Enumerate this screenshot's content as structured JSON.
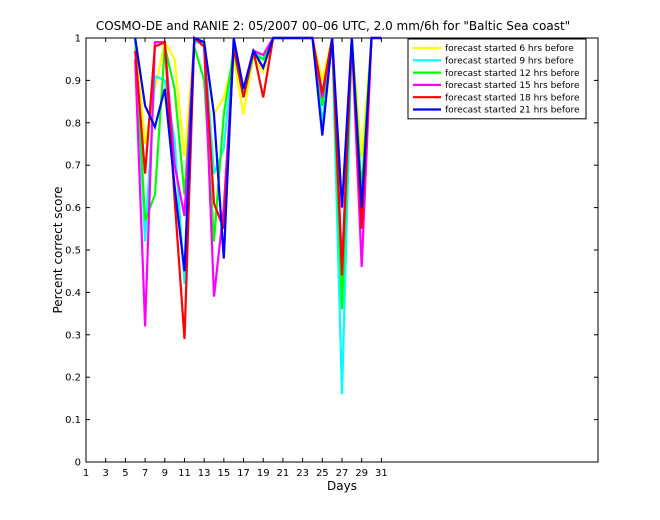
{
  "chart_data": {
    "type": "line",
    "title": "COSMO-DE and RANIE 2: 05/2007 00–06 UTC, 2.0 mm/6h for \"Baltic Sea coast\"",
    "xlabel": "Days",
    "ylabel": "Percent correct score",
    "xlim": [
      1,
      53
    ],
    "ylim": [
      0,
      1
    ],
    "x_ticks": [
      1,
      3,
      5,
      7,
      9,
      11,
      13,
      15,
      17,
      19,
      21,
      23,
      25,
      27,
      29,
      31
    ],
    "y_ticks": [
      0,
      0.1,
      0.2,
      0.3,
      0.4,
      0.5,
      0.6,
      0.7,
      0.8,
      0.9,
      1
    ],
    "grid": false,
    "legend_position": "top-right",
    "x": [
      6,
      7,
      8,
      9,
      10,
      11,
      12,
      13,
      14,
      15,
      16,
      17,
      18,
      19,
      20,
      21,
      22,
      23,
      24,
      25,
      26,
      27,
      28,
      29,
      30,
      31
    ],
    "series": [
      {
        "name": "forecast started 6 hrs before",
        "color": "#ffff00",
        "values": [
          1,
          0.75,
          0.88,
          0.99,
          0.95,
          0.72,
          0.99,
          0.99,
          0.82,
          0.86,
          0.95,
          0.82,
          0.96,
          0.92,
          1,
          1,
          1,
          1,
          1,
          0.9,
          1,
          0.42,
          1,
          0.72,
          1,
          1
        ]
      },
      {
        "name": "forecast started 9 hrs before",
        "color": "#00ffff",
        "values": [
          1,
          0.52,
          0.91,
          0.9,
          0.76,
          0.42,
          0.99,
          0.99,
          0.68,
          0.74,
          0.98,
          0.87,
          0.97,
          0.95,
          1,
          1,
          1,
          1,
          1,
          0.8,
          1,
          0.16,
          1,
          0.6,
          1,
          1
        ]
      },
      {
        "name": "forecast started 12 hrs before",
        "color": "#00ff00",
        "values": [
          1,
          0.57,
          0.63,
          0.98,
          0.88,
          0.63,
          0.98,
          0.9,
          0.52,
          0.82,
          0.97,
          0.86,
          0.96,
          0.95,
          1,
          1,
          1,
          1,
          1,
          0.84,
          1,
          0.36,
          1,
          0.64,
          1,
          1
        ]
      },
      {
        "name": "forecast started 15 hrs before",
        "color": "#ff00ff",
        "values": [
          0.95,
          0.32,
          0.99,
          0.99,
          0.7,
          0.58,
          1,
          0.98,
          0.39,
          0.6,
          0.98,
          0.88,
          0.97,
          0.96,
          1,
          1,
          1,
          1,
          1,
          0.86,
          1,
          0.46,
          1,
          0.46,
          1,
          1
        ]
      },
      {
        "name": "forecast started 18 hrs before",
        "color": "#ff0000",
        "values": [
          0.97,
          0.68,
          0.98,
          0.99,
          0.62,
          0.29,
          1,
          0.98,
          0.61,
          0.55,
          0.98,
          0.86,
          0.97,
          0.86,
          1,
          1,
          1,
          1,
          1,
          0.87,
          1,
          0.44,
          1,
          0.55,
          1,
          1
        ]
      },
      {
        "name": "forecast started 21 hrs before",
        "color": "#0000ff",
        "values": [
          1,
          0.84,
          0.79,
          0.88,
          0.65,
          0.45,
          1,
          0.99,
          0.82,
          0.48,
          1,
          0.88,
          0.97,
          0.93,
          1,
          1,
          1,
          1,
          1,
          0.77,
          1,
          0.6,
          1,
          0.6,
          1,
          1
        ]
      }
    ]
  }
}
